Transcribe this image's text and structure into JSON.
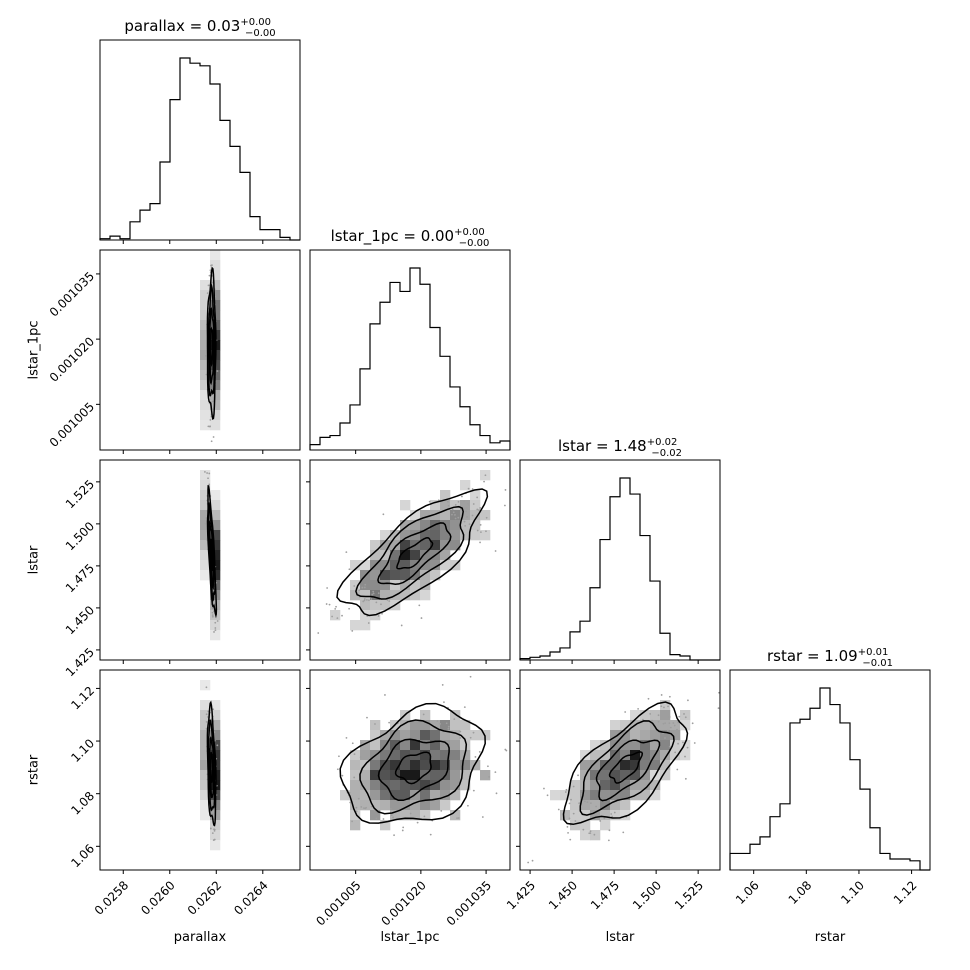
{
  "chart_data": {
    "type": "corner",
    "parameters": [
      "parallax",
      "lstar_1pc",
      "lstar",
      "rstar"
    ],
    "titles": [
      {
        "main": "parallax = 0.03",
        "sup": "+0.00",
        "sub": "−0.00"
      },
      {
        "main": "lstar_1pc = 0.00",
        "sup": "+0.00",
        "sub": "−0.00"
      },
      {
        "main": "lstar = 1.48",
        "sup": "+0.02",
        "sub": "−0.02"
      },
      {
        "main": "rstar = 1.09",
        "sup": "+0.01",
        "sub": "−0.01"
      }
    ],
    "axis_labels": {
      "x": [
        "parallax",
        "lstar_1pc",
        "lstar",
        "rstar"
      ],
      "y": [
        "lstar_1pc",
        "lstar",
        "rstar"
      ]
    },
    "ranges": [
      [
        0.0257,
        0.02656
      ],
      [
        0.0009945,
        0.0010405
      ],
      [
        1.419,
        1.538
      ],
      [
        1.051,
        1.127
      ]
    ],
    "ticks": [
      {
        "values": [
          0.0258,
          0.026,
          0.0262,
          0.0264
        ],
        "labels": [
          "0.0258",
          "0.0260",
          "0.0262",
          "0.0264"
        ]
      },
      {
        "values": [
          0.001005,
          0.00102,
          0.001035
        ],
        "labels": [
          "0.001005",
          "0.001020",
          "0.001035"
        ]
      },
      {
        "values": [
          1.425,
          1.45,
          1.475,
          1.5,
          1.525
        ],
        "labels": [
          "1.425",
          "1.450",
          "1.475",
          "1.500",
          "1.525"
        ]
      },
      {
        "values": [
          1.06,
          1.08,
          1.1,
          1.12
        ],
        "labels": [
          "1.06",
          "1.08",
          "1.10",
          "1.12"
        ]
      }
    ],
    "histograms": [
      [
        1,
        3,
        1,
        14,
        23,
        28,
        60,
        108,
        140,
        136,
        134,
        120,
        92,
        72,
        52,
        18,
        8,
        8,
        2,
        0
      ],
      [
        3,
        7,
        8,
        15,
        25,
        45,
        70,
        82,
        93,
        88,
        101,
        92,
        68,
        52,
        35,
        24,
        14,
        8,
        4,
        5
      ],
      [
        1,
        2,
        3,
        6,
        9,
        21,
        29,
        54,
        90,
        122,
        136,
        124,
        93,
        59,
        20,
        4,
        3,
        0,
        0,
        0
      ],
      [
        9,
        9,
        14,
        18,
        29,
        36,
        80,
        82,
        88,
        99,
        90,
        80,
        60,
        44,
        23,
        9,
        6,
        6,
        5,
        0
      ]
    ],
    "sample_summary": {
      "mean": [
        0.02618,
        0.0010185,
        1.482,
        1.09
      ],
      "sd": [
        9e-06,
        8e-06,
        0.018,
        0.011
      ],
      "corr": [
        [
          1.0,
          0.0,
          -0.75,
          -0.35
        ],
        [
          0.0,
          1.0,
          0.75,
          0.3
        ],
        [
          -0.75,
          0.75,
          1.0,
          0.65
        ],
        [
          -0.35,
          0.3,
          0.65,
          1.0
        ]
      ]
    },
    "contour_levels_sigma": [
      0.5,
      1.0,
      1.5,
      2.0
    ],
    "colors": {
      "line": "#000000",
      "background": "#ffffff",
      "points": "#9e9e9e"
    }
  }
}
